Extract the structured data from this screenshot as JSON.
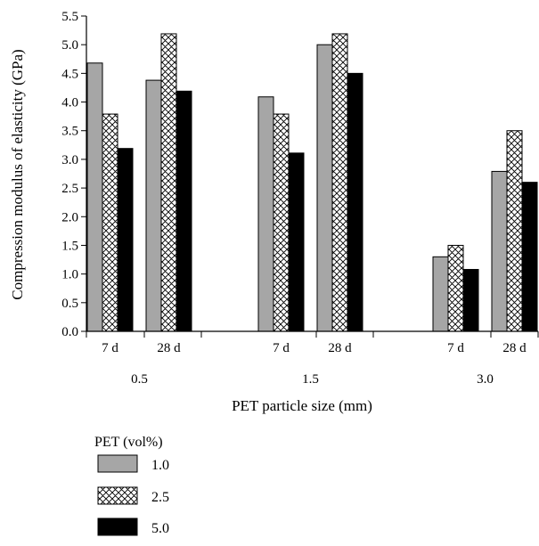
{
  "chart_data": {
    "type": "bar",
    "ylabel": "Compression modulus of elasticity (GPa)",
    "xlabel": "PET particle size (mm)",
    "ylim": [
      0,
      5.5
    ],
    "yticks": [
      "0.0",
      "0.5",
      "1.0",
      "1.5",
      "2.0",
      "2.5",
      "3.0",
      "3.5",
      "4.0",
      "4.5",
      "5.0",
      "5.5"
    ],
    "groups": [
      {
        "label": "0.5",
        "subgroups": [
          {
            "label": "7 d",
            "values": [
              4.68,
              3.79,
              3.19
            ]
          },
          {
            "label": "28 d",
            "values": [
              4.38,
              5.19,
              4.19
            ]
          }
        ]
      },
      {
        "label": "1.5",
        "subgroups": [
          {
            "label": "7 d",
            "values": [
              4.09,
              3.79,
              3.11
            ]
          },
          {
            "label": "28 d",
            "values": [
              5.0,
              5.19,
              4.5
            ]
          }
        ]
      },
      {
        "label": "3.0",
        "subgroups": [
          {
            "label": "7 d",
            "values": [
              1.3,
              1.5,
              1.08
            ]
          },
          {
            "label": "28 d",
            "values": [
              2.79,
              3.5,
              2.6
            ]
          }
        ]
      }
    ],
    "legend": {
      "title": "PET (vol%)",
      "placement": "bottom-left",
      "entries": [
        {
          "label": "1.0",
          "fill": "gray",
          "color": "#a6a6a6"
        },
        {
          "label": "2.5",
          "fill": "crosshatch",
          "color": "#000000"
        },
        {
          "label": "5.0",
          "fill": "solid",
          "color": "#000000"
        }
      ]
    }
  }
}
